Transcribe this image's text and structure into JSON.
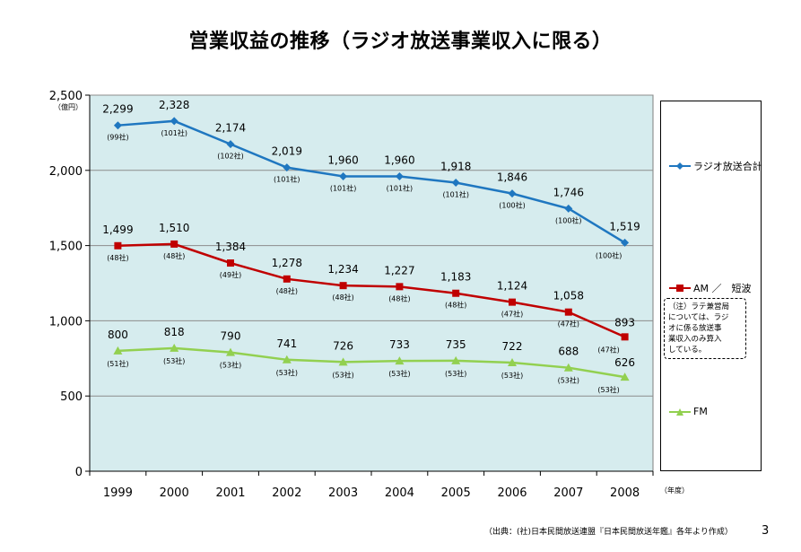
{
  "page": {
    "title": "営業収益の推移（ラジオ放送事業収入に限る）",
    "source": "（出典：(社)日本民間放送連盟『日本民間放送年鑑』各年より作成）",
    "page_number": "3",
    "note": [
      "（注）ラテ兼営局",
      "については、ラジ",
      "オに係る放送事",
      "業収入のみ算入",
      "している。"
    ]
  },
  "colors": {
    "radio_total": "#1f77c0",
    "am": "#c00000",
    "fm": "#92d050",
    "plot_bg": "#d6ecee"
  },
  "chart_data": {
    "type": "line",
    "title": "営業収益の推移（ラジオ放送事業収入に限る）",
    "ylabel": "（億円）",
    "xlabel": "（年度）",
    "ylim": [
      0,
      2500
    ],
    "yticks": [
      0,
      500,
      1000,
      1500,
      2000,
      2500
    ],
    "ytick_labels": [
      "0",
      "500",
      "1,000",
      "1,500",
      "2,000",
      "2,500"
    ],
    "categories": [
      "1999",
      "2000",
      "2001",
      "2002",
      "2003",
      "2004",
      "2005",
      "2006",
      "2007",
      "2008"
    ],
    "series": [
      {
        "name": "ラジオ放送合計",
        "marker": "diamond",
        "color": "#1f77c0",
        "values": [
          2299,
          2328,
          2174,
          2019,
          1960,
          1960,
          1918,
          1846,
          1746,
          1519
        ],
        "labels": [
          "2,299",
          "2,328",
          "2,174",
          "2,019",
          "1,960",
          "1,960",
          "1,918",
          "1,846",
          "1,746",
          "1,519"
        ],
        "companies": [
          "(99社)",
          "(101社)",
          "(102社)",
          "(101社)",
          "(101社)",
          "(101社)",
          "(101社)",
          "(100社)",
          "(100社)",
          "(100社)"
        ]
      },
      {
        "name": "AM ／　短波",
        "marker": "square",
        "color": "#c00000",
        "values": [
          1499,
          1510,
          1384,
          1278,
          1234,
          1227,
          1183,
          1124,
          1058,
          893
        ],
        "labels": [
          "1,499",
          "1,510",
          "1,384",
          "1,278",
          "1,234",
          "1,227",
          "1,183",
          "1,124",
          "1,058",
          "893"
        ],
        "companies": [
          "(48社)",
          "(48社)",
          "(49社)",
          "(48社)",
          "(48社)",
          "(48社)",
          "(48社)",
          "(47社)",
          "(47社)",
          "(47社)"
        ]
      },
      {
        "name": "FM",
        "marker": "triangle",
        "color": "#92d050",
        "values": [
          800,
          818,
          790,
          741,
          726,
          733,
          735,
          722,
          688,
          626
        ],
        "labels": [
          "800",
          "818",
          "790",
          "741",
          "726",
          "733",
          "735",
          "722",
          "688",
          "626"
        ],
        "companies": [
          "(51社)",
          "(53社)",
          "(53社)",
          "(53社)",
          "(53社)",
          "(53社)",
          "(53社)",
          "(53社)",
          "(53社)",
          "(53社)"
        ]
      }
    ]
  }
}
